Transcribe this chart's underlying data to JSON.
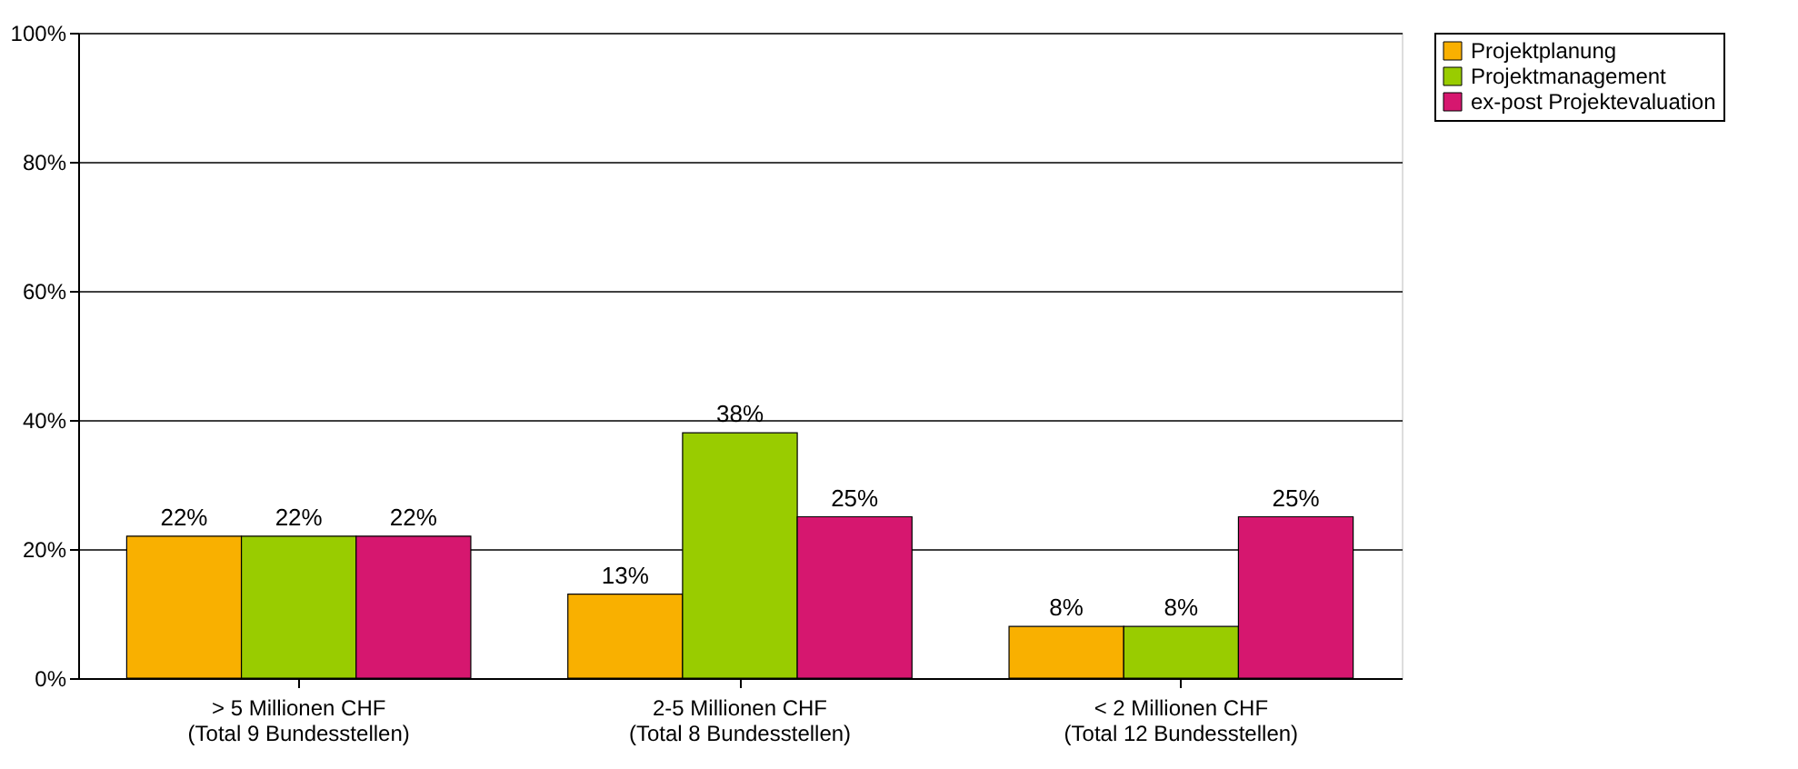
{
  "chart_data": {
    "type": "bar",
    "categories": [
      "> 5 Millionen CHF\n(Total 9 Bundesstellen)",
      "2-5 Millionen CHF\n(Total 8 Bundesstellen)",
      "< 2 Millionen CHF\n(Total 12 Bundesstellen)"
    ],
    "series": [
      {
        "name": "Projektplanung",
        "color": "#f9b000",
        "values": [
          22,
          13,
          8
        ],
        "value_labels": [
          "22%",
          "13%",
          "8%"
        ]
      },
      {
        "name": "Projektmanagement",
        "color": "#99cc00",
        "values": [
          22,
          38,
          8
        ],
        "value_labels": [
          "22%",
          "38%",
          "8%"
        ]
      },
      {
        "name": "ex-post Projektevaluation",
        "color": "#d6176f",
        "values": [
          22,
          25,
          25
        ],
        "value_labels": [
          "22%",
          "25%",
          "25%"
        ]
      }
    ],
    "ylim": [
      0,
      100
    ],
    "yticks": [
      {
        "value": 0,
        "label": "0%"
      },
      {
        "value": 20,
        "label": "20%"
      },
      {
        "value": 40,
        "label": "40%"
      },
      {
        "value": 60,
        "label": "60%"
      },
      {
        "value": 80,
        "label": "80%"
      },
      {
        "value": 100,
        "label": "100%"
      }
    ],
    "grid": "y",
    "legend": "right"
  }
}
